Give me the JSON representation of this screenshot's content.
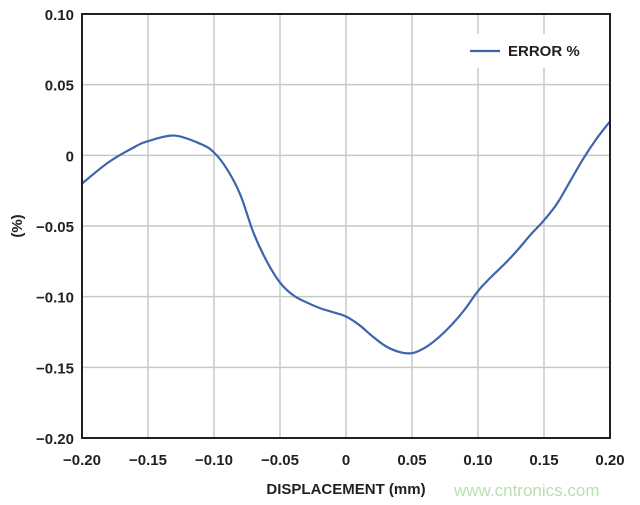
{
  "chart_data": {
    "type": "line",
    "title": "",
    "xlabel": "DISPLACEMENT (mm)",
    "ylabel": "(%)",
    "xlim": [
      -0.2,
      0.2
    ],
    "ylim": [
      -0.2,
      0.1
    ],
    "grid": true,
    "legend_placement": "top-right",
    "x_ticks": [
      "−0.20",
      "−0.15",
      "−0.10",
      "−0.05",
      "0",
      "0.05",
      "0.10",
      "0.15",
      "0.20"
    ],
    "y_ticks": [
      "0.10",
      "0.05",
      "0",
      "−0.05",
      "−0.10",
      "−0.15",
      "−0.20"
    ],
    "series": [
      {
        "name": "ERROR %",
        "color": "#3d64ad",
        "x": [
          -0.2,
          -0.18,
          -0.16,
          -0.15,
          -0.13,
          -0.11,
          -0.1,
          -0.09,
          -0.08,
          -0.07,
          -0.06,
          -0.05,
          -0.04,
          -0.03,
          -0.02,
          -0.01,
          0,
          0.01,
          0.02,
          0.03,
          0.04,
          0.05,
          0.06,
          0.07,
          0.08,
          0.09,
          0.1,
          0.11,
          0.12,
          0.13,
          0.14,
          0.15,
          0.16,
          0.17,
          0.18,
          0.19,
          0.2
        ],
        "y": [
          -0.02,
          -0.005,
          0.006,
          0.01,
          0.014,
          0.008,
          0.002,
          -0.01,
          -0.028,
          -0.055,
          -0.075,
          -0.09,
          -0.099,
          -0.104,
          -0.108,
          -0.111,
          -0.114,
          -0.12,
          -0.128,
          -0.135,
          -0.139,
          -0.14,
          -0.136,
          -0.129,
          -0.12,
          -0.109,
          -0.096,
          -0.086,
          -0.077,
          -0.067,
          -0.056,
          -0.046,
          -0.034,
          -0.018,
          -0.002,
          0.012,
          0.024
        ]
      }
    ]
  },
  "watermark": "www.cntronics.com"
}
